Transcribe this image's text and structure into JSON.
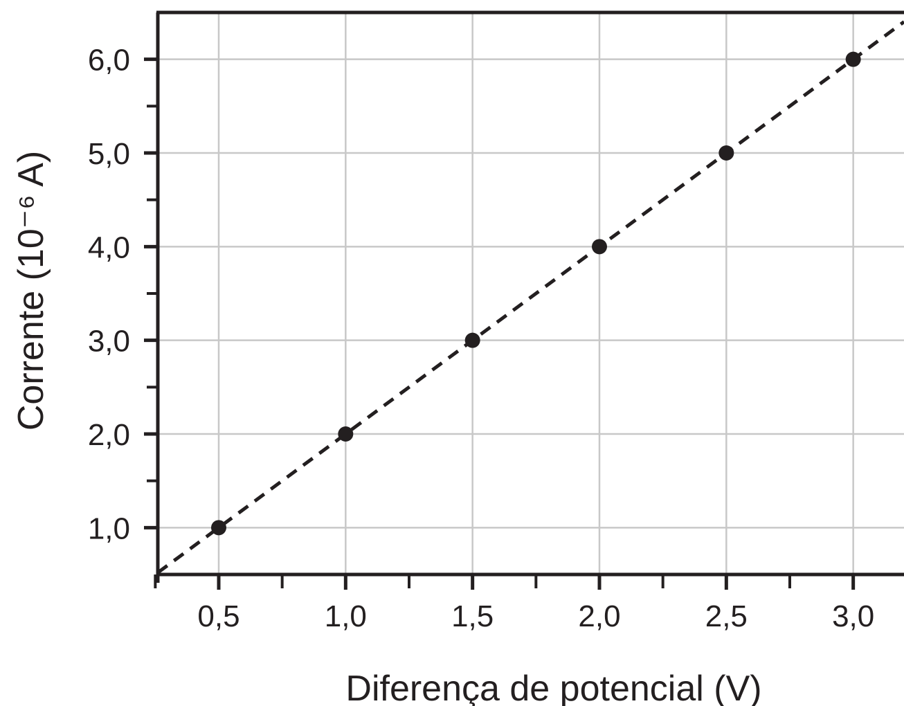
{
  "chart_data": {
    "type": "scatter",
    "title": "",
    "xlabel": "Diferença de potencial (V)",
    "ylabel": "Corrente (10⁻⁶ A)",
    "xlim": [
      0.26,
      3.2
    ],
    "ylim": [
      0.5,
      6.5
    ],
    "grid": true,
    "xticks": [
      {
        "value": 0.5,
        "label": "0,5"
      },
      {
        "value": 1.0,
        "label": "1,0"
      },
      {
        "value": 1.5,
        "label": "1,5"
      },
      {
        "value": 2.0,
        "label": "2,0"
      },
      {
        "value": 2.5,
        "label": "2,5"
      },
      {
        "value": 3.0,
        "label": "3,0"
      }
    ],
    "yticks": [
      {
        "value": 1.0,
        "label": "1,0"
      },
      {
        "value": 2.0,
        "label": "2,0"
      },
      {
        "value": 3.0,
        "label": "3,0"
      },
      {
        "value": 4.0,
        "label": "4,0"
      },
      {
        "value": 5.0,
        "label": "5,0"
      },
      {
        "value": 6.0,
        "label": "6,0"
      }
    ],
    "x_minor_ticks": [
      0.25,
      0.75,
      1.25,
      1.75,
      2.25,
      2.75
    ],
    "y_minor_ticks": [
      1.5,
      2.5,
      3.5,
      4.5,
      5.5
    ],
    "series": [
      {
        "points": [
          {
            "x": 0.5,
            "y": 1.0
          },
          {
            "x": 1.0,
            "y": 2.0
          },
          {
            "x": 1.5,
            "y": 3.0
          },
          {
            "x": 2.0,
            "y": 4.0
          },
          {
            "x": 2.5,
            "y": 5.0
          },
          {
            "x": 3.0,
            "y": 6.0
          }
        ],
        "marker_color": "#231f20"
      }
    ],
    "fit_line": {
      "slope": 2.0,
      "intercept": 0.0,
      "style": "dashed",
      "color": "#231f20"
    },
    "colors": {
      "axis": "#231f20",
      "grid": "#c8c8c8"
    }
  }
}
